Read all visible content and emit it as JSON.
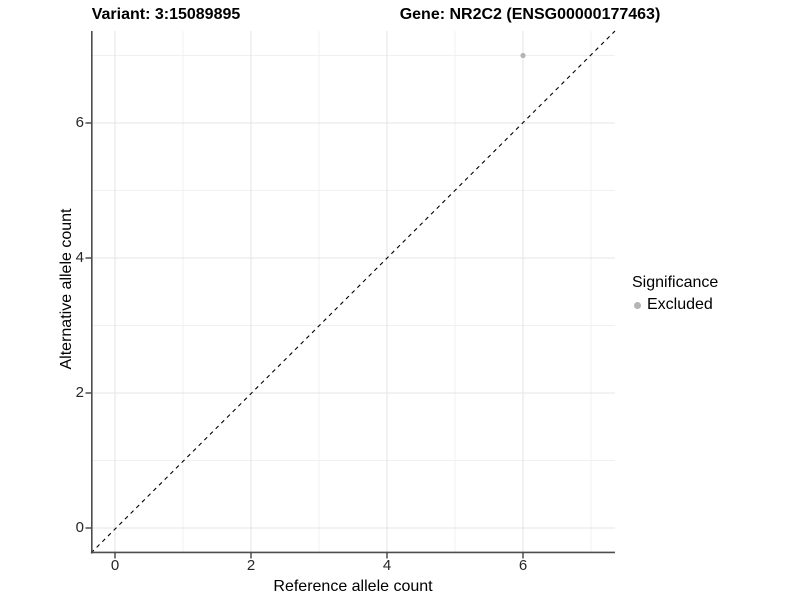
{
  "chart": {
    "titles": {
      "left": "Variant: 3:15089895",
      "right": "Gene: NR2C2 (ENSG00000177463)"
    },
    "x_axis": {
      "label": "Reference allele count",
      "ticks": [
        "0",
        "2",
        "4",
        "6"
      ]
    },
    "y_axis": {
      "label": "Alternative allele count",
      "ticks": [
        "0",
        "2",
        "4",
        "6"
      ]
    },
    "legend": {
      "title": "Significance",
      "items": [
        {
          "label": "Excluded",
          "color": "#b4b4b4"
        }
      ]
    }
  },
  "chart_data": {
    "type": "scatter",
    "title": "Variant: 3:15089895 | Gene: NR2C2 (ENSG00000177463)",
    "xlabel": "Reference allele count",
    "ylabel": "Alternative allele count",
    "xlim": [
      0,
      7
    ],
    "ylim": [
      0,
      7
    ],
    "x_ticks": [
      0,
      2,
      4,
      6
    ],
    "y_ticks": [
      0,
      2,
      4,
      6
    ],
    "grid": true,
    "legend_position": "right",
    "series": [
      {
        "name": "Excluded",
        "color": "#b4b4b4",
        "points": [
          {
            "x": 6,
            "y": 7
          }
        ]
      }
    ],
    "reference_line": {
      "type": "identity y=x",
      "style": "dashed",
      "color": "#000000"
    },
    "colors": {
      "background": "#ffffff",
      "grid_major": "#e5e5e5",
      "grid_minor": "#f0f0f0",
      "axis_line": "#4d4d4d",
      "point": "#b4b4b4"
    }
  }
}
